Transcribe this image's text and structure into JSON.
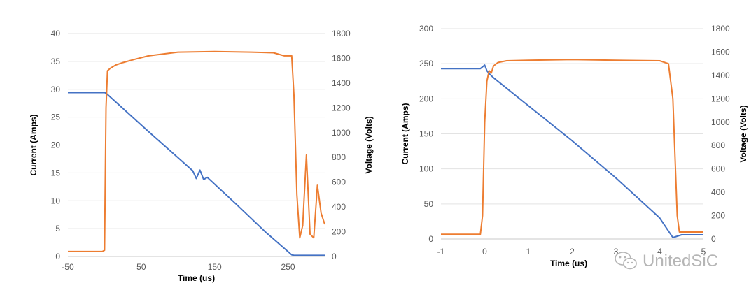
{
  "colors": {
    "current": "#4472c4",
    "voltage": "#ed7d31",
    "grid": "#e3e3e3",
    "watermark": "#b5b5b5"
  },
  "watermark": {
    "text": "UnitedSiC",
    "icon": "wechat-logo-icon"
  },
  "chart_data": [
    {
      "type": "line",
      "xlabel": "Time (us)",
      "ylabel": "Current (Amps)",
      "y2label": "Voltage (Volts)",
      "xlim": [
        -50,
        300
      ],
      "ylim": [
        0,
        40
      ],
      "y2lim": [
        0,
        1800
      ],
      "xticks": [
        -50,
        50,
        150,
        250
      ],
      "yticks": [
        0,
        5,
        10,
        15,
        20,
        25,
        30,
        35,
        40
      ],
      "y2ticks": [
        0,
        200,
        400,
        600,
        800,
        1000,
        1200,
        1400,
        1600,
        1800
      ],
      "grid": true,
      "legend": "none",
      "series": [
        {
          "axis": "left",
          "color": "current",
          "x": [
            -50,
            0,
            2,
            60,
            120,
            125,
            130,
            135,
            140,
            180,
            220,
            255,
            258,
            270,
            300
          ],
          "y": [
            29.4,
            29.4,
            29.3,
            22.4,
            15.4,
            14.0,
            15.5,
            13.8,
            14.2,
            9.3,
            4.3,
            0.3,
            0.2,
            0.2,
            0.2
          ]
        },
        {
          "axis": "right",
          "color": "voltage",
          "x": [
            -50,
            -3,
            0,
            2,
            4,
            8,
            15,
            25,
            40,
            60,
            100,
            150,
            200,
            230,
            245,
            255,
            258,
            262,
            266,
            270,
            275,
            280,
            285,
            290,
            295,
            300
          ],
          "y": [
            40,
            40,
            50,
            1200,
            1500,
            1520,
            1545,
            1565,
            1590,
            1620,
            1650,
            1655,
            1650,
            1645,
            1620,
            1620,
            1300,
            500,
            150,
            250,
            820,
            180,
            150,
            575,
            350,
            260
          ]
        }
      ]
    },
    {
      "type": "line",
      "xlabel": "Time (us)",
      "ylabel": "Current (Amps)",
      "y2label": "Voltage (Volts)",
      "xlim": [
        -1,
        5
      ],
      "ylim": [
        0,
        300
      ],
      "y2lim": [
        0,
        1800
      ],
      "xticks": [
        -1,
        0,
        1,
        2,
        3,
        4,
        5
      ],
      "yticks": [
        0,
        50,
        100,
        150,
        200,
        250,
        300
      ],
      "y2ticks": [
        0,
        200,
        400,
        600,
        800,
        1000,
        1200,
        1400,
        1600,
        1800
      ],
      "grid": true,
      "legend": "none",
      "series": [
        {
          "axis": "left",
          "color": "current",
          "x": [
            -1,
            -0.1,
            0,
            0.05,
            0.1,
            0.2,
            1,
            2,
            3,
            4,
            4.3,
            4.5,
            5
          ],
          "y": [
            243,
            243,
            248,
            240,
            236,
            230,
            190,
            140,
            87,
            30,
            2,
            6,
            6
          ],
          "ymax_note": ""
        },
        {
          "axis": "right",
          "color": "voltage",
          "x": [
            -1,
            -0.1,
            -0.05,
            0,
            0.05,
            0.1,
            0.15,
            0.2,
            0.3,
            0.5,
            1,
            2,
            3,
            4,
            4.2,
            4.3,
            4.4,
            4.45,
            4.5,
            5
          ],
          "y": [
            40,
            40,
            200,
            1000,
            1350,
            1440,
            1420,
            1480,
            1510,
            1525,
            1530,
            1535,
            1530,
            1525,
            1500,
            1200,
            200,
            60,
            60,
            60
          ]
        }
      ]
    }
  ]
}
